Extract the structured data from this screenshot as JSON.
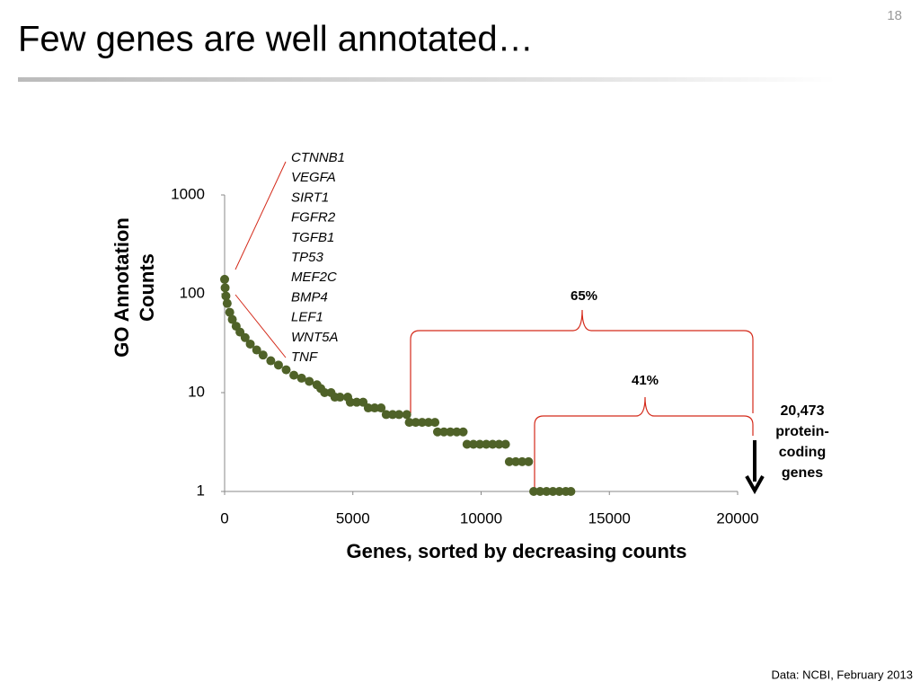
{
  "slide": {
    "title": "Few genes are well annotated…",
    "page": "18",
    "source": "Data: NCBI, February 2013"
  },
  "chart_data": {
    "type": "scatter",
    "xlabel": "Genes, sorted by decreasing counts",
    "ylabel": [
      "GO Annotation",
      "Counts"
    ],
    "x": [
      0,
      20,
      50,
      100,
      200,
      300,
      450,
      600,
      800,
      1000,
      1250,
      1500,
      1800,
      2100,
      2400,
      2700,
      3000,
      3300,
      3600,
      3750,
      3900,
      4150,
      4300,
      4500,
      4800,
      4900,
      5150,
      5400,
      5600,
      5850,
      6100,
      6300,
      6550,
      6800,
      7100,
      7200,
      7450,
      7700,
      7950,
      8200,
      8300,
      8550,
      8800,
      9050,
      9300,
      9450,
      9700,
      9950,
      10200,
      10450,
      10700,
      10950,
      11100,
      11350,
      11600,
      11850,
      12050,
      12300,
      12550,
      12800,
      13050,
      13300,
      13500
    ],
    "values": [
      140,
      115,
      95,
      80,
      65,
      55,
      47,
      41,
      36,
      31,
      27,
      24,
      21,
      19,
      17,
      15,
      14,
      13,
      12,
      11,
      10,
      10,
      9,
      9,
      9,
      8,
      8,
      8,
      7,
      7,
      7,
      6,
      6,
      6,
      6,
      5,
      5,
      5,
      5,
      5,
      4,
      4,
      4,
      4,
      4,
      3,
      3,
      3,
      3,
      3,
      3,
      3,
      2,
      2,
      2,
      2,
      1,
      1,
      1,
      1,
      1,
      1,
      1
    ],
    "color": "#4f6228",
    "xlim": [
      0,
      20000
    ],
    "xticks": [
      0,
      5000,
      10000,
      15000,
      20000
    ],
    "ylim": [
      1,
      1000
    ],
    "yticks": [
      1,
      10,
      100,
      1000
    ],
    "yscale": "log",
    "grid": false,
    "gene_list": [
      "CTNNB1",
      "VEGFA",
      "SIRT1",
      "FGFR2",
      "TGFB1",
      "TP53",
      "MEF2C",
      "BMP4",
      "LEF1",
      "WNT5A",
      "TNF"
    ],
    "annotations": [
      "65%",
      "41%"
    ],
    "total_label": [
      "20,473",
      "protein-",
      "coding",
      "genes"
    ]
  }
}
